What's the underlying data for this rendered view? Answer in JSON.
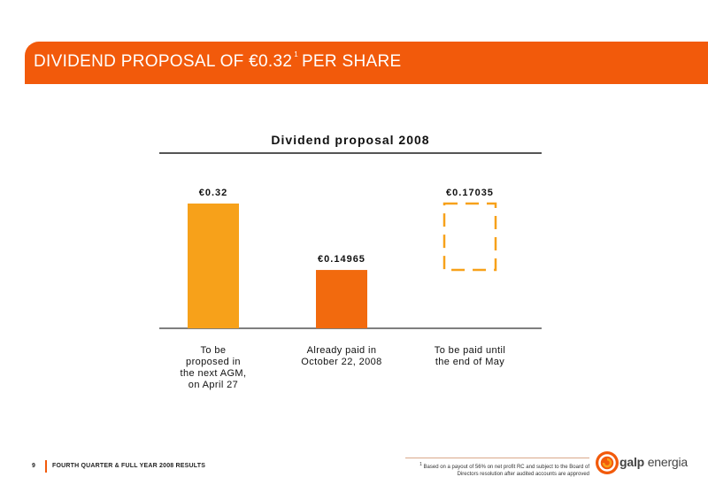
{
  "slide": {
    "title": "DIVIDEND PROPOSAL OF €0.32",
    "title_superscript": "1",
    "title_suffix": "PER SHARE",
    "page_number": "9",
    "footer_text": "FOURTH QUARTER & FULL YEAR 2008 RESULTS",
    "footnote_marker": "1",
    "footnote": "Based on a payout of 56% on net profit RC and subject to the Board of Directors resolution after audited accounts are approved",
    "logo_text_bold": "galp",
    "logo_text": "energia"
  },
  "chart_data": {
    "type": "bar",
    "title": "Dividend proposal 2008",
    "categories": [
      "To be proposed in the next AGM, on April 27",
      "Already paid in October 22, 2008",
      "To be paid until the end of May"
    ],
    "category_lines": [
      [
        "To be",
        "proposed in",
        "the next AGM,",
        "on April 27"
      ],
      [
        "Already paid in",
        "October 22, 2008"
      ],
      [
        "To be paid until",
        "the end of May"
      ]
    ],
    "values": [
      0.32,
      0.14965,
      0.17035
    ],
    "data_labels": [
      "€0.32",
      "€0.14965",
      "€0.17035"
    ],
    "bar_styles": [
      "solid",
      "solid",
      "dashed-outline"
    ],
    "colors": [
      "#f7a11a",
      "#f26a0e",
      "#f7a11a"
    ],
    "ylim": [
      0,
      0.32
    ],
    "grid": false,
    "axis_color": "#555555"
  }
}
